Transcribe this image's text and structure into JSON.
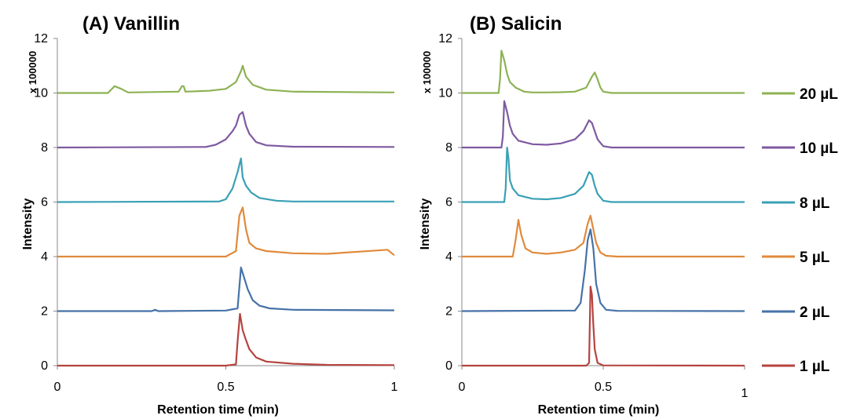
{
  "chart_data": [
    {
      "type": "line",
      "title": "(A) Vanillin",
      "xlabel": "Retention time (min)",
      "ylabel": "Intensity",
      "yscale_label": "x 100000",
      "xlim": [
        0,
        1
      ],
      "ylim": [
        0,
        12
      ],
      "xticks": [
        "0",
        "0.5",
        "1"
      ],
      "yticks": [
        "0",
        "2",
        "4",
        "6",
        "8",
        "10",
        "12"
      ],
      "series": [
        {
          "name": "1 µL",
          "color": "#b5443f",
          "baseline": 0,
          "x": [
            0,
            0.5,
            0.53,
            0.535,
            0.542,
            0.55,
            0.558,
            0.57,
            0.59,
            0.62,
            0.7,
            0.8,
            1.0
          ],
          "y": [
            0,
            0,
            0.05,
            0.9,
            1.9,
            1.3,
            1.0,
            0.6,
            0.3,
            0.15,
            0.07,
            0.03,
            0.02
          ]
        },
        {
          "name": "2 µL",
          "color": "#4672a8",
          "baseline": 2,
          "x": [
            0,
            0.28,
            0.29,
            0.3,
            0.5,
            0.535,
            0.545,
            0.555,
            0.565,
            0.58,
            0.6,
            0.63,
            0.7,
            1.0
          ],
          "y": [
            2,
            2,
            2.05,
            2,
            2.02,
            2.1,
            3.6,
            3.2,
            2.8,
            2.4,
            2.2,
            2.1,
            2.05,
            2.03
          ]
        },
        {
          "name": "5 µL",
          "color": "#e08a3c",
          "baseline": 4,
          "x": [
            0,
            0.5,
            0.53,
            0.54,
            0.55,
            0.56,
            0.57,
            0.59,
            0.62,
            0.7,
            0.8,
            0.98,
            0.99,
            1.0
          ],
          "y": [
            4,
            4,
            4.2,
            5.5,
            5.8,
            5.0,
            4.5,
            4.3,
            4.2,
            4.12,
            4.1,
            4.25,
            4.15,
            4.05
          ]
        },
        {
          "name": "8 µL",
          "color": "#3aa0b5",
          "baseline": 6,
          "x": [
            0,
            0.48,
            0.5,
            0.52,
            0.535,
            0.545,
            0.55,
            0.56,
            0.575,
            0.6,
            0.65,
            0.7,
            1.0
          ],
          "y": [
            6,
            6.02,
            6.1,
            6.5,
            7.1,
            7.6,
            6.9,
            6.6,
            6.35,
            6.15,
            6.05,
            6.02,
            6.02
          ]
        },
        {
          "name": "10 µL",
          "color": "#7e5aa0",
          "baseline": 8,
          "x": [
            0,
            0.44,
            0.47,
            0.5,
            0.52,
            0.53,
            0.54,
            0.55,
            0.56,
            0.57,
            0.59,
            0.62,
            0.7,
            1.0
          ],
          "y": [
            8,
            8.02,
            8.1,
            8.3,
            8.6,
            8.8,
            9.2,
            9.3,
            8.8,
            8.5,
            8.2,
            8.08,
            8.03,
            8.02
          ]
        },
        {
          "name": "20 µL",
          "color": "#8db254",
          "baseline": 10,
          "x": [
            0,
            0.15,
            0.17,
            0.19,
            0.21,
            0.36,
            0.37,
            0.375,
            0.38,
            0.45,
            0.5,
            0.53,
            0.545,
            0.55,
            0.56,
            0.58,
            0.62,
            0.7,
            1.0
          ],
          "y": [
            10,
            10,
            10.25,
            10.15,
            10.02,
            10.05,
            10.25,
            10.25,
            10.05,
            10.08,
            10.15,
            10.4,
            10.8,
            11.0,
            10.6,
            10.3,
            10.12,
            10.05,
            10.02
          ]
        }
      ]
    },
    {
      "type": "line",
      "title": "(B) Salicin",
      "xlabel": "Retention time (min)",
      "ylabel": "Intensity",
      "yscale_label": "x 100000",
      "xlim": [
        0,
        1
      ],
      "ylim": [
        0,
        12
      ],
      "xticks": [
        "0",
        "0.5",
        "1"
      ],
      "yticks": [
        "0",
        "2",
        "4",
        "6",
        "8",
        "10",
        "12"
      ],
      "series": [
        {
          "name": "1 µL",
          "color": "#b5443f",
          "baseline": 0,
          "x": [
            0,
            0.44,
            0.45,
            0.455,
            0.46,
            0.465,
            0.47,
            0.48,
            0.5,
            1.0
          ],
          "y": [
            0,
            0,
            0.1,
            2.9,
            2.6,
            1.5,
            0.6,
            0.1,
            0.01,
            0
          ]
        },
        {
          "name": "2 µL",
          "color": "#4672a8",
          "baseline": 2,
          "x": [
            0,
            0.4,
            0.42,
            0.435,
            0.445,
            0.455,
            0.465,
            0.475,
            0.49,
            0.51,
            0.55,
            1.0
          ],
          "y": [
            2,
            2.02,
            2.3,
            3.5,
            4.6,
            5.0,
            4.3,
            3.0,
            2.3,
            2.05,
            2.01,
            2.0
          ]
        },
        {
          "name": "5 µL",
          "color": "#e08a3c",
          "baseline": 4,
          "x": [
            0,
            0.18,
            0.19,
            0.2,
            0.21,
            0.225,
            0.25,
            0.3,
            0.35,
            0.4,
            0.43,
            0.445,
            0.455,
            0.465,
            0.475,
            0.49,
            0.51,
            0.55,
            1.0
          ],
          "y": [
            4,
            4,
            4.6,
            5.35,
            4.8,
            4.3,
            4.15,
            4.1,
            4.15,
            4.25,
            4.5,
            5.2,
            5.5,
            5.0,
            4.5,
            4.15,
            4.03,
            4.0,
            4.0
          ]
        },
        {
          "name": "8 µL",
          "color": "#3aa0b5",
          "baseline": 6,
          "x": [
            0,
            0.15,
            0.155,
            0.16,
            0.165,
            0.17,
            0.18,
            0.2,
            0.25,
            0.3,
            0.35,
            0.4,
            0.43,
            0.45,
            0.46,
            0.47,
            0.48,
            0.5,
            0.53,
            1.0
          ],
          "y": [
            6,
            6,
            6.5,
            8.0,
            7.6,
            6.8,
            6.5,
            6.25,
            6.12,
            6.1,
            6.15,
            6.3,
            6.6,
            7.1,
            7.0,
            6.6,
            6.3,
            6.05,
            6.0,
            6.0
          ]
        },
        {
          "name": "10 µL",
          "color": "#7e5aa0",
          "baseline": 8,
          "x": [
            0,
            0.14,
            0.145,
            0.15,
            0.16,
            0.17,
            0.18,
            0.2,
            0.25,
            0.3,
            0.35,
            0.4,
            0.43,
            0.45,
            0.46,
            0.47,
            0.48,
            0.5,
            0.53,
            1.0
          ],
          "y": [
            8,
            8,
            8.4,
            9.7,
            9.3,
            8.8,
            8.5,
            8.25,
            8.12,
            8.1,
            8.15,
            8.3,
            8.6,
            9.0,
            8.9,
            8.6,
            8.3,
            8.05,
            8.0,
            8.0
          ]
        },
        {
          "name": "20 µL",
          "color": "#8db254",
          "baseline": 10,
          "x": [
            0,
            0.13,
            0.135,
            0.14,
            0.15,
            0.16,
            0.17,
            0.19,
            0.22,
            0.25,
            0.3,
            0.35,
            0.4,
            0.44,
            0.46,
            0.47,
            0.48,
            0.49,
            0.5,
            0.53,
            1.0
          ],
          "y": [
            10,
            10,
            10.5,
            11.55,
            11.2,
            10.7,
            10.4,
            10.2,
            10.05,
            10.02,
            10.02,
            10.03,
            10.05,
            10.2,
            10.6,
            10.75,
            10.5,
            10.2,
            10.05,
            10.0,
            10.0
          ]
        }
      ]
    }
  ],
  "legend": {
    "placement": "right",
    "entries": [
      {
        "label": "20 µL",
        "color": "#8db254"
      },
      {
        "label": "10 µL",
        "color": "#7e5aa0"
      },
      {
        "label": "8 µL",
        "color": "#3aa0b5"
      },
      {
        "label": "5 µL",
        "color": "#e08a3c"
      },
      {
        "label": "2 µL",
        "color": "#4672a8"
      },
      {
        "label": "1 µL",
        "color": "#b5443f"
      }
    ]
  }
}
